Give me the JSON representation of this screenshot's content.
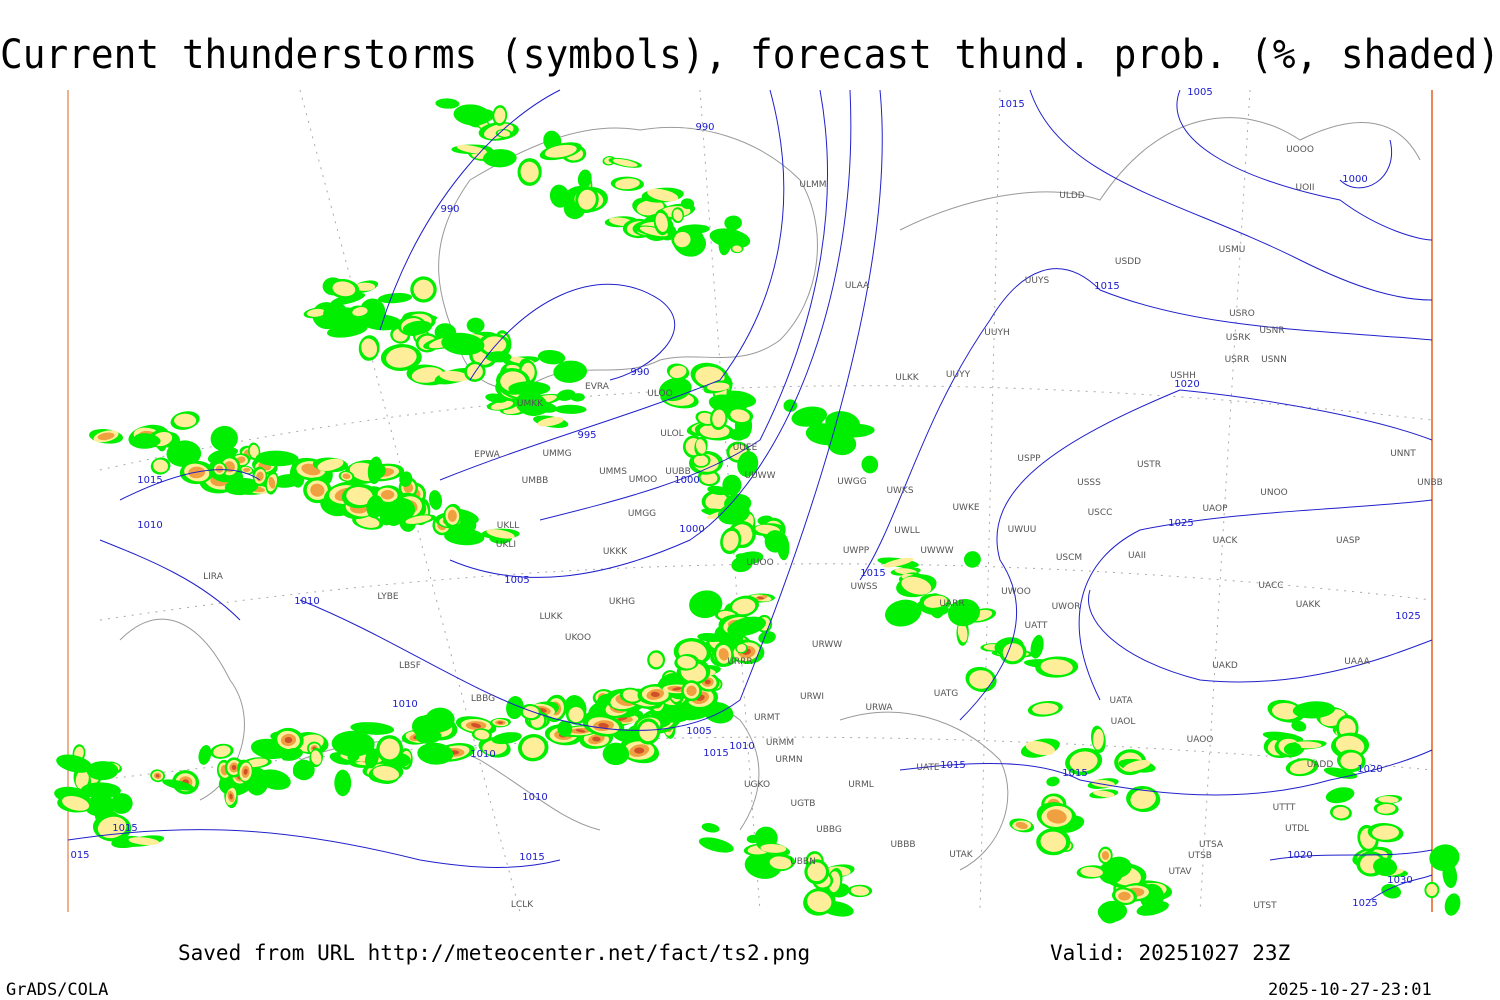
{
  "header": {
    "title": "Current thunderstorms (symbols), forecast thund. prob. (%, shaded)"
  },
  "footer": {
    "source": "Saved from URL http://meteocenter.net/fact/ts2.png",
    "valid": "Valid: 20251027 23Z",
    "software": "GrADS/COLA",
    "timestamp": "2025-10-27-23:01"
  },
  "isobar_labels": [
    "990",
    "990",
    "990",
    "995",
    "1000",
    "1000",
    "1005",
    "1010",
    "1010",
    "1005",
    "1010",
    "1015",
    "1010",
    "1010",
    "1015",
    "1015",
    "1015",
    "1010",
    "1015",
    "1005",
    "1000",
    "1015",
    "1020",
    "1025",
    "1025",
    "1015",
    "1015",
    "1015",
    "1020",
    "1020",
    "1030",
    "1025",
    "015"
  ],
  "station_labels": [
    "UUEE",
    "UUWW",
    "UMMS",
    "UMMG",
    "UMBB",
    "UMOO",
    "UUBB",
    "UMGG",
    "UKKK",
    "UKHG",
    "UKOO",
    "LUKK",
    "LYBE",
    "LBSF",
    "LBBG",
    "UUOO",
    "URRR",
    "URMT",
    "URMM",
    "URMN",
    "UGTB",
    "UBBG",
    "UBBN",
    "URWI",
    "URWW",
    "URWA",
    "UATG",
    "UATT",
    "UATE",
    "UARR",
    "UWOO",
    "UWOR",
    "UWUU",
    "UWKE",
    "UWKS",
    "UWGG",
    "UWPP",
    "UWSS",
    "UWWW",
    "UWLL",
    "USPP",
    "USSS",
    "USTR",
    "USCC",
    "USCM",
    "UAII",
    "UACK",
    "UAOP",
    "UACC",
    "UAKK",
    "UAKD",
    "UAAA",
    "UATA",
    "UAOL",
    "UAOO",
    "UADD",
    "UTTT",
    "UTDL",
    "UTSB",
    "UTAV",
    "UTST",
    "UASP",
    "UNOO",
    "UNNT",
    "UNBB",
    "USHH",
    "USRR",
    "USNN",
    "USRK",
    "USNR",
    "USRO",
    "USMU",
    "USDD",
    "UUYS",
    "UUYH",
    "UUYY",
    "ULKK",
    "ULAA",
    "ULMM",
    "UOOO",
    "UOII",
    "ULDD",
    "UMKK",
    "EVRA",
    "ULOO",
    "ULOL",
    "EPWA",
    "UKLL",
    "UKLI",
    "LIRA",
    "LCLK",
    "UTAK",
    "UBBB",
    "URML",
    "UGKO",
    "UTSA"
  ]
}
